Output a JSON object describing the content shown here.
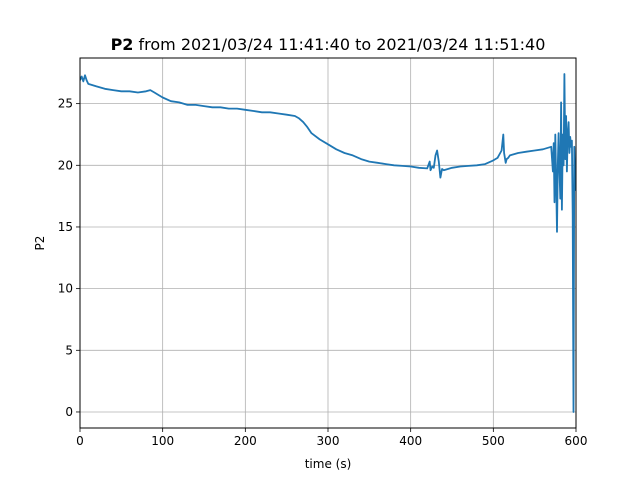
{
  "chart_data": {
    "type": "line",
    "title_bold": "P2",
    "title_rest": " from 2021/03/24 11:41:40 to 2021/03/24 11:51:40",
    "xlabel": "time (s)",
    "ylabel": "P2",
    "xlim": [
      0,
      600
    ],
    "ylim": [
      -1.3,
      28.7
    ],
    "xticks": [
      0,
      100,
      200,
      300,
      400,
      500,
      600
    ],
    "yticks": [
      0,
      5,
      10,
      15,
      20,
      25
    ],
    "grid": true,
    "color": "#1f77b4",
    "series": [
      {
        "x": [
          0,
          2,
          4,
          6,
          8,
          10,
          15,
          20,
          30,
          40,
          50,
          60,
          70,
          80,
          85,
          90,
          95,
          100,
          110,
          120,
          130,
          140,
          150,
          160,
          170,
          180,
          190,
          200,
          210,
          220,
          230,
          240,
          250,
          260,
          265,
          270,
          275,
          280,
          290,
          300,
          310,
          320,
          330,
          340,
          350,
          360,
          370,
          380,
          390,
          400,
          410,
          420,
          423,
          424,
          426,
          428,
          430,
          432,
          434,
          436,
          437,
          438,
          440,
          445,
          450,
          460,
          470,
          480,
          490,
          500,
          505,
          510,
          512,
          513,
          515,
          516,
          518,
          520,
          530,
          540,
          550,
          560,
          570,
          572,
          573,
          574,
          575,
          576,
          577,
          578,
          579,
          580,
          581,
          582,
          583,
          584,
          585,
          586,
          587,
          588,
          589,
          590,
          591,
          592,
          593,
          594,
          595,
          596,
          597,
          598,
          599,
          600
        ],
        "y": [
          26.9,
          27.2,
          26.8,
          27.3,
          26.9,
          26.6,
          26.5,
          26.4,
          26.2,
          26.1,
          26.0,
          26.0,
          25.9,
          26.0,
          26.1,
          25.9,
          25.7,
          25.5,
          25.2,
          25.1,
          24.9,
          24.9,
          24.8,
          24.7,
          24.7,
          24.6,
          24.6,
          24.5,
          24.4,
          24.3,
          24.3,
          24.2,
          24.1,
          24.0,
          23.8,
          23.5,
          23.1,
          22.6,
          22.1,
          21.7,
          21.3,
          21.0,
          20.8,
          20.5,
          20.3,
          20.2,
          20.1,
          20.0,
          19.95,
          19.9,
          19.8,
          19.75,
          20.3,
          19.6,
          19.9,
          19.8,
          20.8,
          21.2,
          20.3,
          19.0,
          19.4,
          19.7,
          19.6,
          19.7,
          19.8,
          19.9,
          19.95,
          20.0,
          20.1,
          20.4,
          20.6,
          21.2,
          22.5,
          21.0,
          20.2,
          20.5,
          20.6,
          20.8,
          21.0,
          21.1,
          21.2,
          21.3,
          21.5,
          19.5,
          21.8,
          17.0,
          22.5,
          18.5,
          14.6,
          20.0,
          22.6,
          19.5,
          17.3,
          25.1,
          16.4,
          22.5,
          20.0,
          27.4,
          20.5,
          24.0,
          19.5,
          22.5,
          23.5,
          21.0,
          22.3,
          21.5,
          22.0,
          16.0,
          0.0,
          21.5,
          18.0,
          19.5
        ]
      }
    ]
  }
}
